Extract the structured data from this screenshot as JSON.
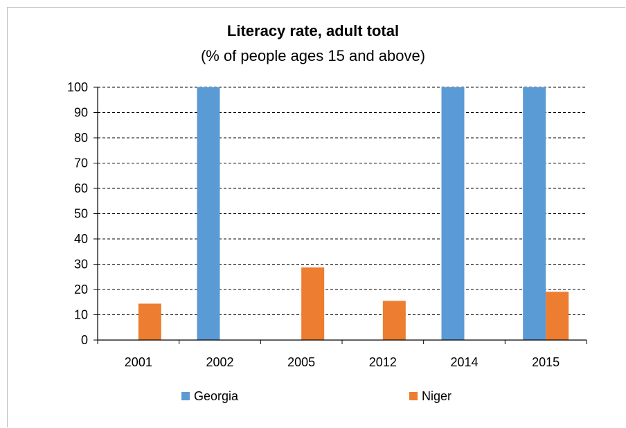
{
  "chart_data": {
    "type": "bar",
    "title": "Literacy rate, adult total",
    "subtitle": "(% of people ages 15 and above)",
    "categories": [
      "2001",
      "2002",
      "2005",
      "2012",
      "2014",
      "2015"
    ],
    "series": [
      {
        "name": "Georgia",
        "color": "#5b9bd5",
        "values": [
          null,
          100,
          null,
          null,
          100,
          100
        ]
      },
      {
        "name": "Niger",
        "color": "#ed7d31",
        "values": [
          14.4,
          null,
          28.7,
          15.5,
          null,
          19.1
        ]
      }
    ],
    "ylim": [
      0,
      100
    ],
    "yticks": [
      0,
      10,
      20,
      30,
      40,
      50,
      60,
      70,
      80,
      90,
      100
    ],
    "grid": "dashed horizontal",
    "legend": "bottom"
  }
}
